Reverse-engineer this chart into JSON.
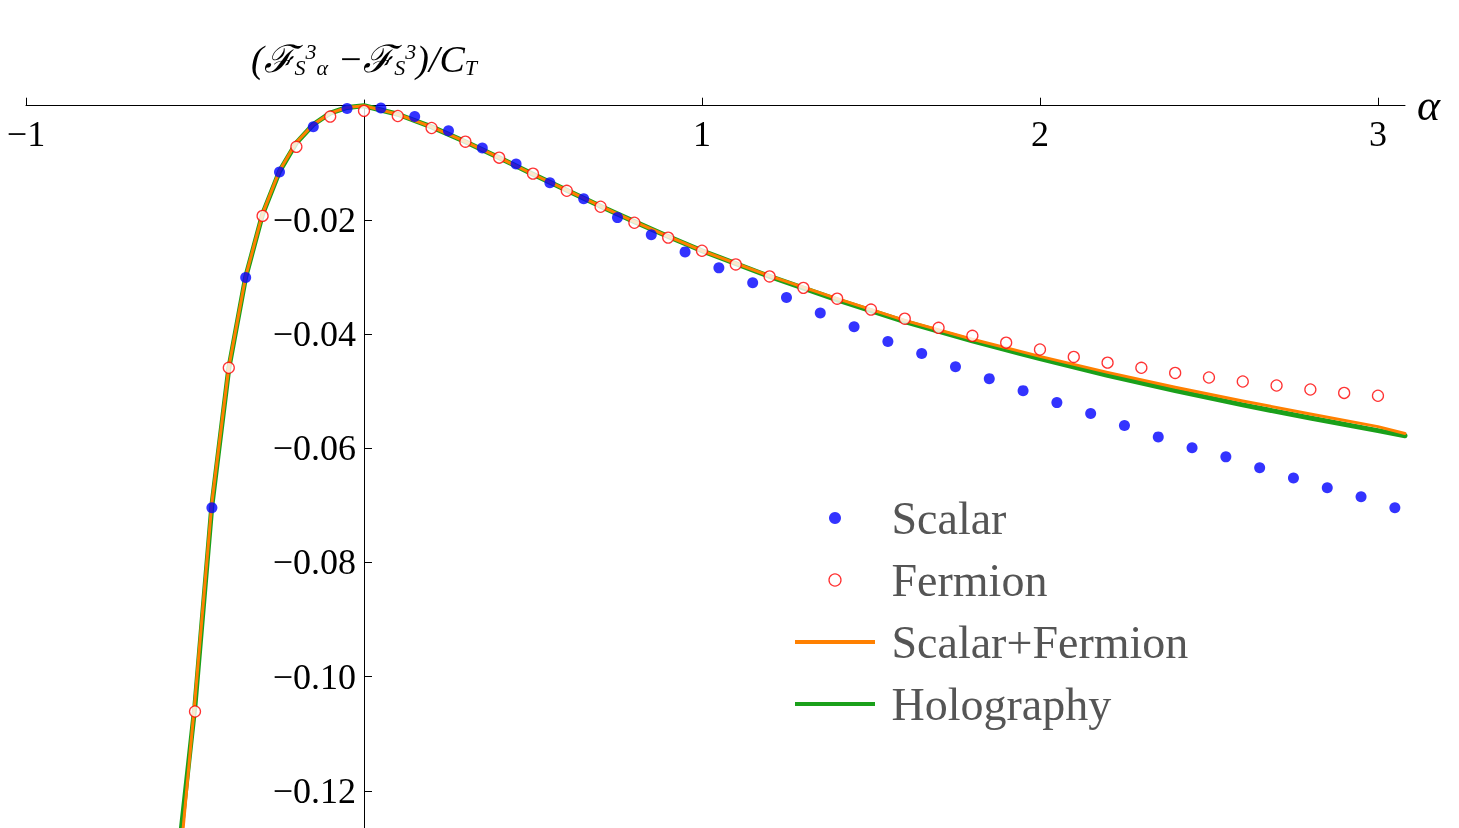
{
  "chart_data": {
    "type": "scatter",
    "xlabel": "α",
    "ylabel": "(ℱ$_{S}$$^{3}$$_{α}$ −ℱ$_{S}$$^{3}$)/C$_{T}$",
    "xlim": [
      -1,
      3.08
    ],
    "ylim": [
      -0.1265,
      0.001
    ],
    "xticks": [
      {
        "value": -1,
        "label": "−1"
      },
      {
        "value": 1,
        "label": "1"
      },
      {
        "value": 2,
        "label": "2"
      },
      {
        "value": 3,
        "label": "3"
      }
    ],
    "yticks": [
      {
        "value": -0.02,
        "label": "−0.02"
      },
      {
        "value": -0.04,
        "label": "−0.04"
      },
      {
        "value": -0.06,
        "label": "−0.06"
      },
      {
        "value": -0.08,
        "label": "−0.08"
      },
      {
        "value": -0.1,
        "label": "−0.10"
      },
      {
        "value": -0.12,
        "label": "−0.12"
      }
    ],
    "grid": false,
    "legend": "right",
    "series": [
      {
        "name": "Scalar",
        "marker": "circle",
        "color": "#0000ff",
        "x": [
          -0.45,
          -0.35,
          -0.25,
          -0.15,
          -0.05,
          0.05,
          0.15,
          0.25,
          0.35,
          0.45,
          0.55,
          0.65,
          0.75,
          0.85,
          0.95,
          1.05,
          1.15,
          1.25,
          1.35,
          1.45,
          1.55,
          1.65,
          1.75,
          1.85,
          1.95,
          2.05,
          2.15,
          2.25,
          2.35,
          2.45,
          2.55,
          2.65,
          2.75,
          2.85,
          2.95,
          3.05
        ],
        "values": [
          -0.0704,
          -0.0301,
          -0.0116,
          -0.0037,
          -0.0005,
          -0.0004,
          -0.0019,
          -0.0044,
          -0.0074,
          -0.0102,
          -0.0135,
          -0.0163,
          -0.0196,
          -0.0226,
          -0.0256,
          -0.0284,
          -0.031,
          -0.0336,
          -0.0363,
          -0.0387,
          -0.0413,
          -0.0434,
          -0.0457,
          -0.0478,
          -0.0499,
          -0.052,
          -0.0539,
          -0.056,
          -0.058,
          -0.0599,
          -0.0615,
          -0.0634,
          -0.0652,
          -0.0669,
          -0.0685,
          -0.0704
        ]
      },
      {
        "name": "Fermion",
        "color": "#ff0000",
        "x": [
          -0.5,
          -0.4,
          -0.3,
          -0.2,
          -0.1,
          0,
          0.1,
          0.2,
          0.3,
          0.4,
          0.5,
          0.6,
          0.7,
          0.8,
          0.9,
          1,
          1.1,
          1.2,
          1.3,
          1.4,
          1.5,
          1.6,
          1.7,
          1.8,
          1.9,
          2,
          2.1,
          2.2,
          2.3,
          2.4,
          2.5,
          2.6,
          2.7,
          2.8,
          2.9,
          3
        ],
        "values": [
          -0.1061,
          -0.0459,
          -0.0193,
          -0.0072,
          -0.0019,
          -0.0009,
          -0.0018,
          -0.0039,
          -0.0063,
          -0.0091,
          -0.0119,
          -0.0149,
          -0.0177,
          -0.0205,
          -0.0231,
          -0.0254,
          -0.0278,
          -0.0299,
          -0.0319,
          -0.0338,
          -0.0357,
          -0.0373,
          -0.0389,
          -0.0403,
          -0.0415,
          -0.0427,
          -0.044,
          -0.045,
          -0.0459,
          -0.0468,
          -0.0476,
          -0.0483,
          -0.049,
          -0.0497,
          -0.0503,
          -0.0508
        ]
      },
      {
        "name": "Scalar+Fermion",
        "type": "line",
        "marker": "none",
        "color": "#ff8000",
        "x": [
          -0.535,
          -0.5,
          -0.45,
          -0.4,
          -0.35,
          -0.3,
          -0.25,
          -0.2,
          -0.15,
          -0.1,
          -0.05,
          0,
          0.1,
          0.2,
          0.3,
          0.4,
          0.5,
          0.6,
          0.7,
          0.8,
          0.9,
          1,
          1.2,
          1.4,
          1.6,
          1.8,
          2,
          2.2,
          2.4,
          2.6,
          2.8,
          3,
          3.08
        ],
        "values": [
          -0.1265,
          -0.104,
          -0.0695,
          -0.0458,
          -0.0299,
          -0.0189,
          -0.0114,
          -0.0064,
          -0.0033,
          -0.0013,
          -0.0003,
          0,
          -0.0015,
          -0.0037,
          -0.0063,
          -0.0091,
          -0.012,
          -0.0148,
          -0.0176,
          -0.0203,
          -0.0229,
          -0.0254,
          -0.0298,
          -0.0338,
          -0.0376,
          -0.0409,
          -0.0439,
          -0.0467,
          -0.0493,
          -0.0517,
          -0.054,
          -0.0562,
          -0.0574
        ]
      },
      {
        "name": "Holography",
        "type": "line",
        "marker": "none",
        "color": "#1aa01a",
        "x": [
          -0.54,
          -0.5,
          -0.45,
          -0.4,
          -0.35,
          -0.3,
          -0.25,
          -0.2,
          -0.15,
          -0.1,
          -0.05,
          0,
          0.1,
          0.2,
          0.3,
          0.4,
          0.5,
          0.6,
          0.7,
          0.8,
          0.9,
          1,
          1.2,
          1.4,
          1.6,
          1.8,
          2,
          2.2,
          2.4,
          2.6,
          2.8,
          3,
          3.08
        ],
        "values": [
          -0.1265,
          -0.105,
          -0.07,
          -0.046,
          -0.03,
          -0.019,
          -0.0115,
          -0.0065,
          -0.0033,
          -0.0013,
          -0.0003,
          0,
          -0.0015,
          -0.0037,
          -0.0063,
          -0.0091,
          -0.012,
          -0.0148,
          -0.0176,
          -0.0203,
          -0.0229,
          -0.0254,
          -0.0299,
          -0.034,
          -0.0378,
          -0.0412,
          -0.0443,
          -0.0472,
          -0.0499,
          -0.0524,
          -0.0547,
          -0.0569,
          -0.0578
        ]
      }
    ]
  }
}
